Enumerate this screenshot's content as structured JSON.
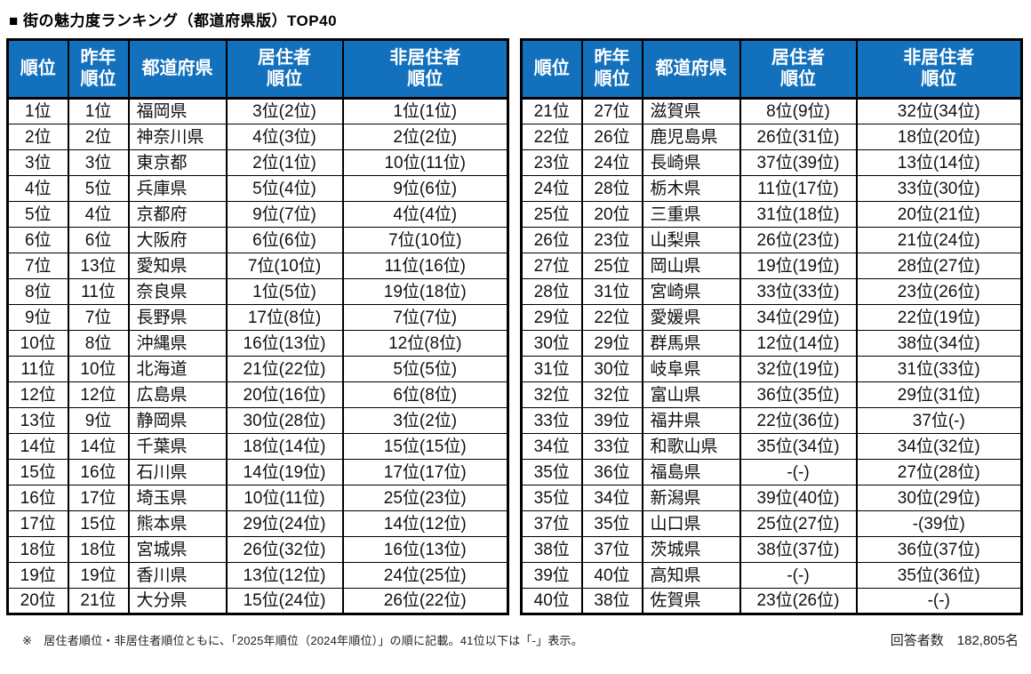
{
  "page": {
    "title": "■ 街の魅力度ランキング（都道府県版）TOP40",
    "footnote": "※　居住者順位・非居住者順位ともに、「2025年順位（2024年順位）」の順に記載。41位以下は「-」表示。",
    "respondents": "回答者数　182,805名"
  },
  "colors": {
    "header_bg": "#1270BC",
    "header_text": "#FFFFFF",
    "border": "#000000",
    "body_text": "#111111"
  },
  "columns": [
    "順位",
    "昨年\n順位",
    "都道府県",
    "居住者\n順位",
    "非居住者\n順位"
  ],
  "tables": [
    {
      "name": "ranks-1-20",
      "rows": [
        {
          "rank": "1位",
          "last_year": "1位",
          "prefecture": "福岡県",
          "resident": "3位(2位)",
          "non_resident": "1位(1位)"
        },
        {
          "rank": "2位",
          "last_year": "2位",
          "prefecture": "神奈川県",
          "resident": "4位(3位)",
          "non_resident": "2位(2位)"
        },
        {
          "rank": "3位",
          "last_year": "3位",
          "prefecture": "東京都",
          "resident": "2位(1位)",
          "non_resident": "10位(11位)"
        },
        {
          "rank": "4位",
          "last_year": "5位",
          "prefecture": "兵庫県",
          "resident": "5位(4位)",
          "non_resident": "9位(6位)"
        },
        {
          "rank": "5位",
          "last_year": "4位",
          "prefecture": "京都府",
          "resident": "9位(7位)",
          "non_resident": "4位(4位)"
        },
        {
          "rank": "6位",
          "last_year": "6位",
          "prefecture": "大阪府",
          "resident": "6位(6位)",
          "non_resident": "7位(10位)"
        },
        {
          "rank": "7位",
          "last_year": "13位",
          "prefecture": "愛知県",
          "resident": "7位(10位)",
          "non_resident": "11位(16位)"
        },
        {
          "rank": "8位",
          "last_year": "11位",
          "prefecture": "奈良県",
          "resident": "1位(5位)",
          "non_resident": "19位(18位)"
        },
        {
          "rank": "9位",
          "last_year": "7位",
          "prefecture": "長野県",
          "resident": "17位(8位)",
          "non_resident": "7位(7位)"
        },
        {
          "rank": "10位",
          "last_year": "8位",
          "prefecture": "沖縄県",
          "resident": "16位(13位)",
          "non_resident": "12位(8位)"
        },
        {
          "rank": "11位",
          "last_year": "10位",
          "prefecture": "北海道",
          "resident": "21位(22位)",
          "non_resident": "5位(5位)"
        },
        {
          "rank": "12位",
          "last_year": "12位",
          "prefecture": "広島県",
          "resident": "20位(16位)",
          "non_resident": "6位(8位)"
        },
        {
          "rank": "13位",
          "last_year": "9位",
          "prefecture": "静岡県",
          "resident": "30位(28位)",
          "non_resident": "3位(2位)"
        },
        {
          "rank": "14位",
          "last_year": "14位",
          "prefecture": "千葉県",
          "resident": "18位(14位)",
          "non_resident": "15位(15位)"
        },
        {
          "rank": "15位",
          "last_year": "16位",
          "prefecture": "石川県",
          "resident": "14位(19位)",
          "non_resident": "17位(17位)"
        },
        {
          "rank": "16位",
          "last_year": "17位",
          "prefecture": "埼玉県",
          "resident": "10位(11位)",
          "non_resident": "25位(23位)"
        },
        {
          "rank": "17位",
          "last_year": "15位",
          "prefecture": "熊本県",
          "resident": "29位(24位)",
          "non_resident": "14位(12位)"
        },
        {
          "rank": "18位",
          "last_year": "18位",
          "prefecture": "宮城県",
          "resident": "26位(32位)",
          "non_resident": "16位(13位)"
        },
        {
          "rank": "19位",
          "last_year": "19位",
          "prefecture": "香川県",
          "resident": "13位(12位)",
          "non_resident": "24位(25位)"
        },
        {
          "rank": "20位",
          "last_year": "21位",
          "prefecture": "大分県",
          "resident": "15位(24位)",
          "non_resident": "26位(22位)"
        }
      ]
    },
    {
      "name": "ranks-21-40",
      "rows": [
        {
          "rank": "21位",
          "last_year": "27位",
          "prefecture": "滋賀県",
          "resident": "8位(9位)",
          "non_resident": "32位(34位)"
        },
        {
          "rank": "22位",
          "last_year": "26位",
          "prefecture": "鹿児島県",
          "resident": "26位(31位)",
          "non_resident": "18位(20位)"
        },
        {
          "rank": "23位",
          "last_year": "24位",
          "prefecture": "長崎県",
          "resident": "37位(39位)",
          "non_resident": "13位(14位)"
        },
        {
          "rank": "24位",
          "last_year": "28位",
          "prefecture": "栃木県",
          "resident": "11位(17位)",
          "non_resident": "33位(30位)"
        },
        {
          "rank": "25位",
          "last_year": "20位",
          "prefecture": "三重県",
          "resident": "31位(18位)",
          "non_resident": "20位(21位)"
        },
        {
          "rank": "26位",
          "last_year": "23位",
          "prefecture": "山梨県",
          "resident": "26位(23位)",
          "non_resident": "21位(24位)"
        },
        {
          "rank": "27位",
          "last_year": "25位",
          "prefecture": "岡山県",
          "resident": "19位(19位)",
          "non_resident": "28位(27位)"
        },
        {
          "rank": "28位",
          "last_year": "31位",
          "prefecture": "宮崎県",
          "resident": "33位(33位)",
          "non_resident": "23位(26位)"
        },
        {
          "rank": "29位",
          "last_year": "22位",
          "prefecture": "愛媛県",
          "resident": "34位(29位)",
          "non_resident": "22位(19位)"
        },
        {
          "rank": "30位",
          "last_year": "29位",
          "prefecture": "群馬県",
          "resident": "12位(14位)",
          "non_resident": "38位(34位)"
        },
        {
          "rank": "31位",
          "last_year": "30位",
          "prefecture": "岐阜県",
          "resident": "32位(19位)",
          "non_resident": "31位(33位)"
        },
        {
          "rank": "32位",
          "last_year": "32位",
          "prefecture": "富山県",
          "resident": "36位(35位)",
          "non_resident": "29位(31位)"
        },
        {
          "rank": "33位",
          "last_year": "39位",
          "prefecture": "福井県",
          "resident": "22位(36位)",
          "non_resident": "37位(-)"
        },
        {
          "rank": "34位",
          "last_year": "33位",
          "prefecture": "和歌山県",
          "resident": "35位(34位)",
          "non_resident": "34位(32位)"
        },
        {
          "rank": "35位",
          "last_year": "36位",
          "prefecture": "福島県",
          "resident": "-(-)",
          "non_resident": "27位(28位)"
        },
        {
          "rank": "35位",
          "last_year": "34位",
          "prefecture": "新潟県",
          "resident": "39位(40位)",
          "non_resident": "30位(29位)"
        },
        {
          "rank": "37位",
          "last_year": "35位",
          "prefecture": "山口県",
          "resident": "25位(27位)",
          "non_resident": "-(39位)"
        },
        {
          "rank": "38位",
          "last_year": "37位",
          "prefecture": "茨城県",
          "resident": "38位(37位)",
          "non_resident": "36位(37位)"
        },
        {
          "rank": "39位",
          "last_year": "40位",
          "prefecture": "高知県",
          "resident": "-(-)",
          "non_resident": "35位(36位)"
        },
        {
          "rank": "40位",
          "last_year": "38位",
          "prefecture": "佐賀県",
          "resident": "23位(26位)",
          "non_resident": "-(-)"
        }
      ]
    }
  ]
}
